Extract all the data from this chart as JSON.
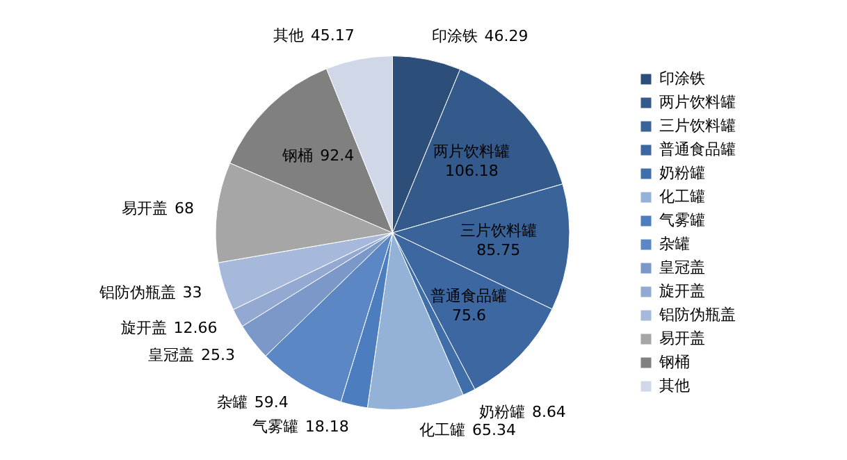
{
  "chart_data": {
    "type": "pie",
    "categories": [
      "印涂铁",
      "两片饮料罐",
      "三片饮料罐",
      "普通食品罐",
      "奶粉罐",
      "化工罐",
      "气雾罐",
      "杂罐",
      "皇冠盖",
      "旋开盖",
      "铝防伪瓶盖",
      "易开盖",
      "钢桶",
      "其他"
    ],
    "values": [
      46.29,
      106.18,
      85.75,
      75.6,
      8.64,
      65.34,
      18.18,
      59.4,
      25.3,
      12.66,
      33,
      68,
      92.4,
      45.17
    ],
    "colors": [
      "#2e4e7a",
      "#335a8a",
      "#3a6499",
      "#3d67a0",
      "#3f6ea8",
      "#94b1d8",
      "#4b7dbf",
      "#5b87c4",
      "#7b98c8",
      "#94a9d2",
      "#a7b9da",
      "#a6a6a6",
      "#808080",
      "#d0d8e8"
    ],
    "data_labels": true,
    "legend": "right"
  }
}
